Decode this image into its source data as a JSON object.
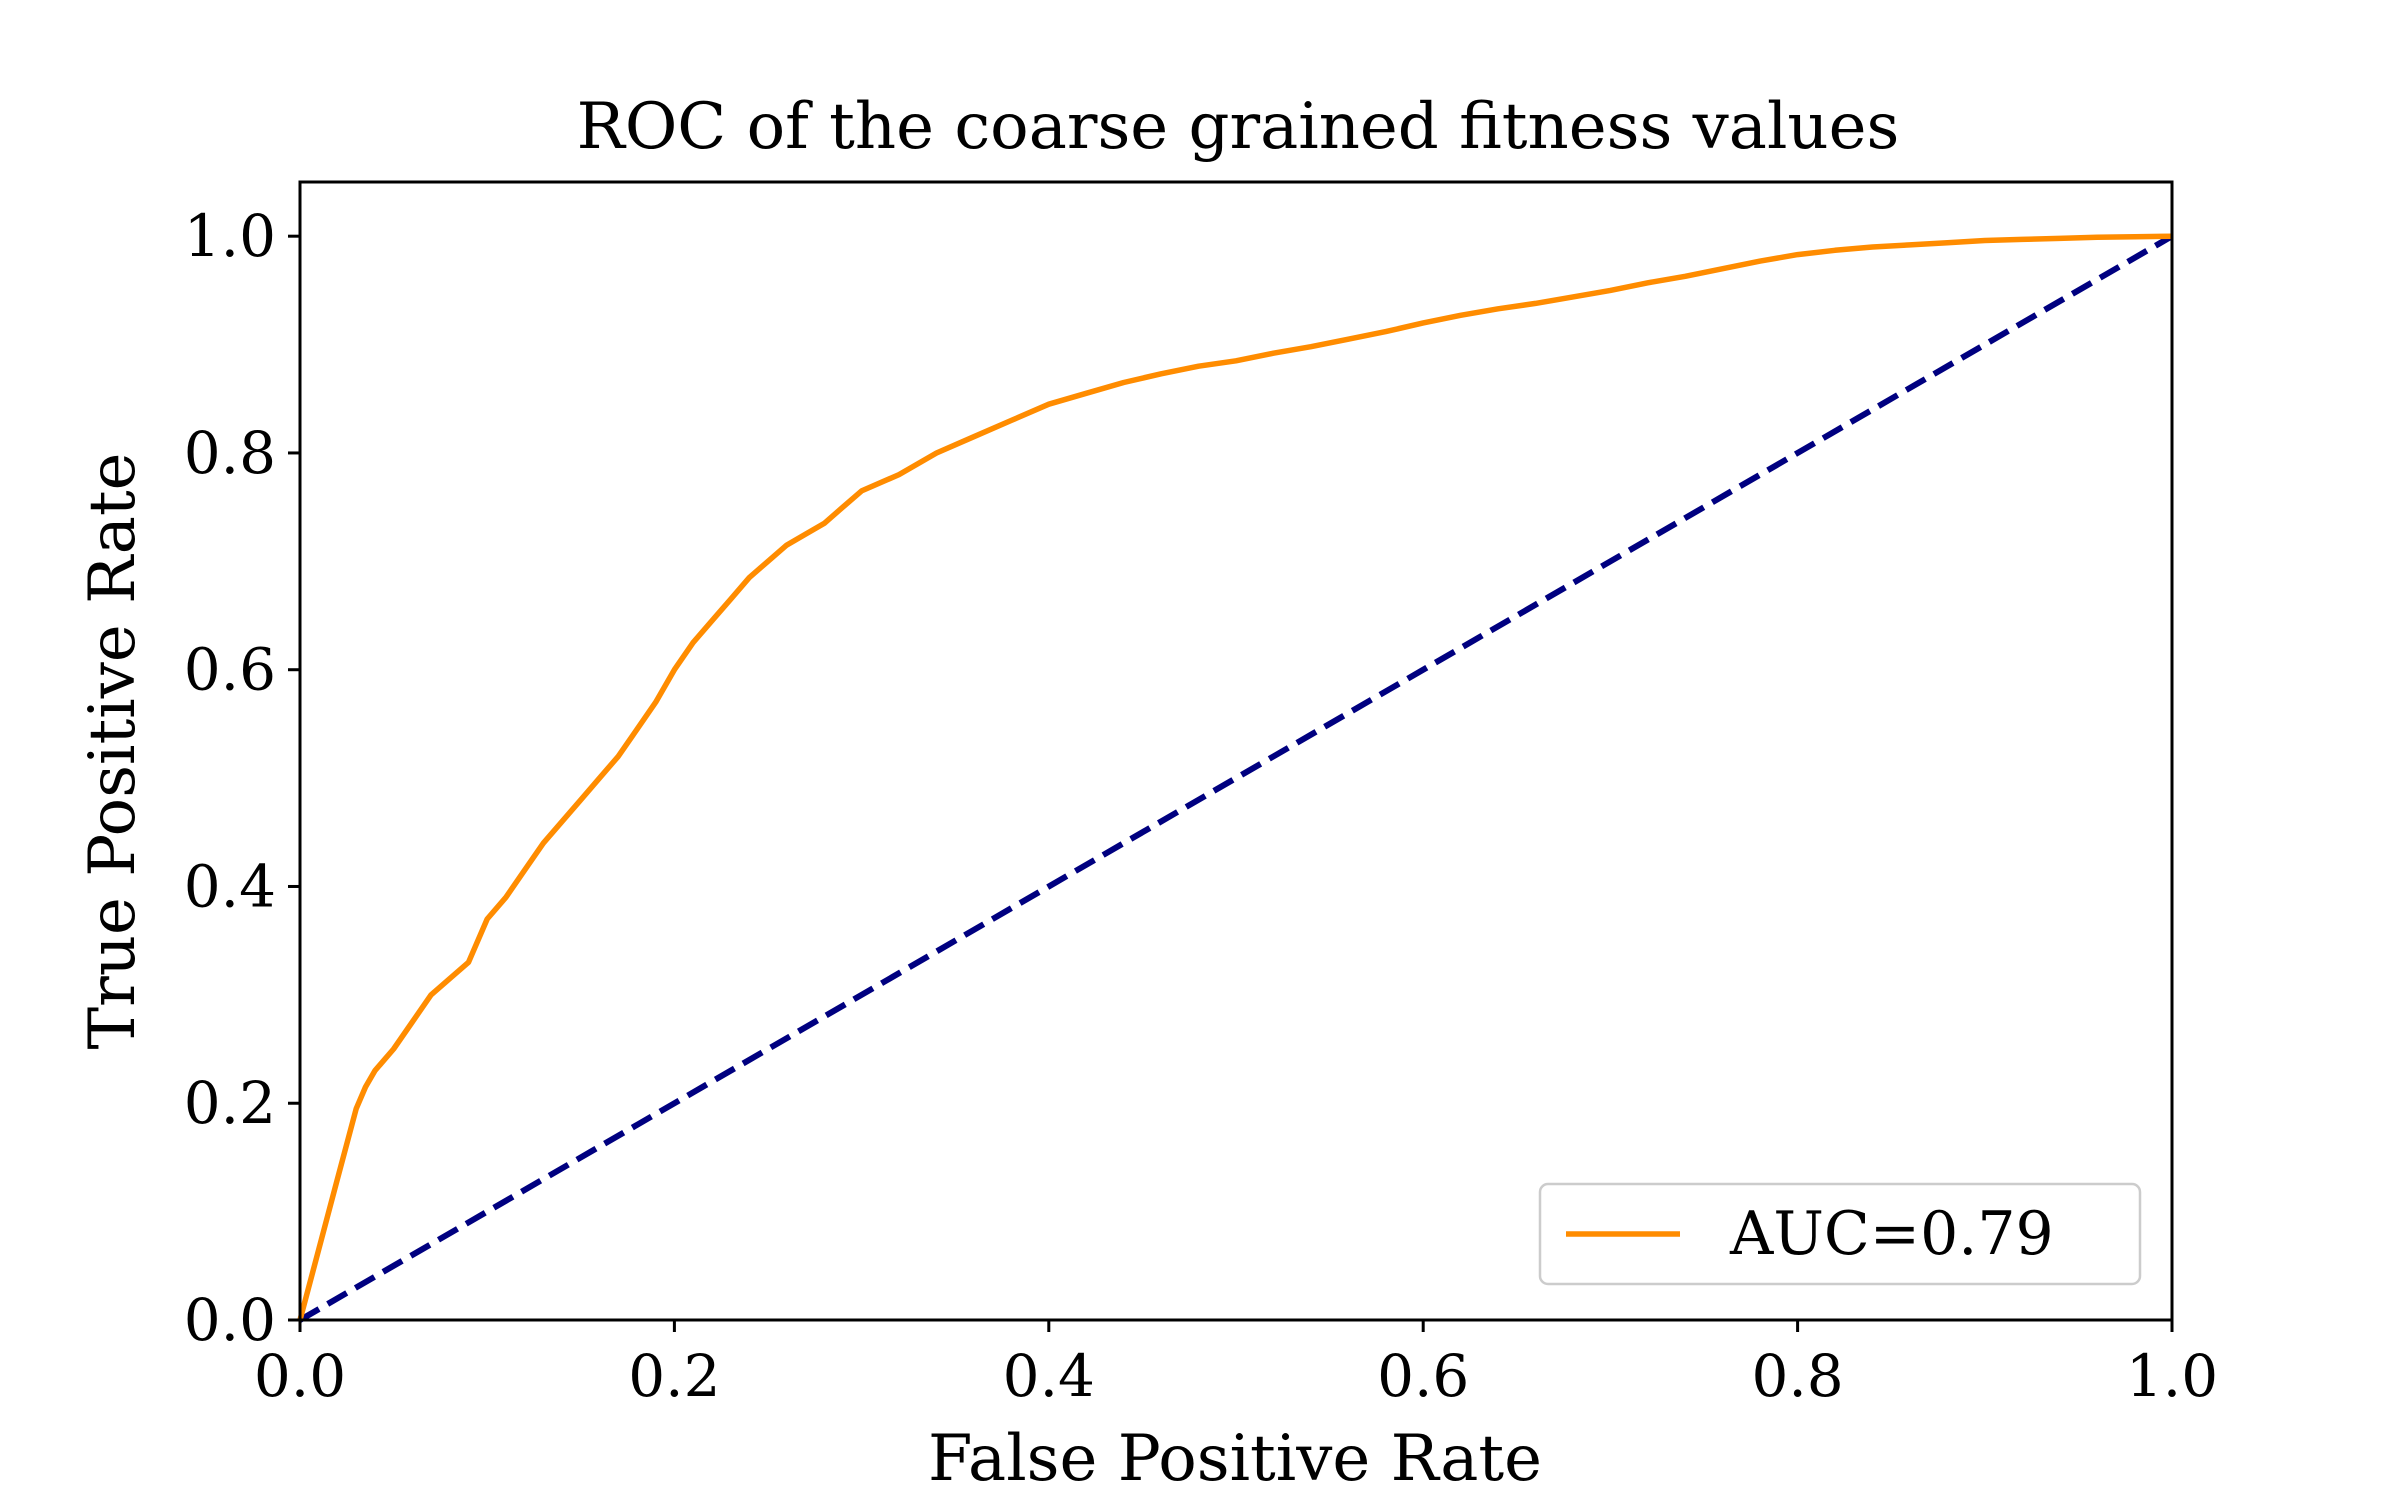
{
  "chart_data": {
    "type": "line",
    "title": "ROC of the coarse grained fitness values",
    "xlabel": "False Positive Rate",
    "ylabel": "True Positive Rate",
    "xlim": [
      0.0,
      1.0
    ],
    "ylim": [
      0.0,
      1.05
    ],
    "x_ticks": [
      0.0,
      0.2,
      0.4,
      0.6,
      0.8,
      1.0
    ],
    "x_tick_labels": [
      "0.0",
      "0.2",
      "0.4",
      "0.6",
      "0.8",
      "1.0"
    ],
    "y_ticks": [
      0.0,
      0.2,
      0.4,
      0.6,
      0.8,
      1.0
    ],
    "y_tick_labels": [
      "0.0",
      "0.2",
      "0.4",
      "0.6",
      "0.8",
      "1.0"
    ],
    "grid": false,
    "legend_position": "bottom-right",
    "series": [
      {
        "name": "AUC=0.79",
        "color": "#ff8c00",
        "style": "solid",
        "x": [
          0.0,
          0.01,
          0.02,
          0.03,
          0.035,
          0.04,
          0.05,
          0.06,
          0.07,
          0.08,
          0.09,
          0.1,
          0.11,
          0.12,
          0.13,
          0.14,
          0.15,
          0.16,
          0.17,
          0.18,
          0.19,
          0.2,
          0.21,
          0.22,
          0.23,
          0.24,
          0.25,
          0.26,
          0.27,
          0.28,
          0.29,
          0.3,
          0.32,
          0.34,
          0.36,
          0.38,
          0.4,
          0.42,
          0.44,
          0.46,
          0.48,
          0.5,
          0.52,
          0.54,
          0.56,
          0.58,
          0.6,
          0.62,
          0.64,
          0.66,
          0.68,
          0.7,
          0.72,
          0.74,
          0.76,
          0.78,
          0.8,
          0.82,
          0.84,
          0.86,
          0.88,
          0.9,
          0.92,
          0.94,
          0.96,
          0.98,
          1.0
        ],
        "y": [
          0.0,
          0.065,
          0.13,
          0.195,
          0.215,
          0.23,
          0.25,
          0.275,
          0.3,
          0.315,
          0.33,
          0.37,
          0.39,
          0.415,
          0.44,
          0.46,
          0.48,
          0.5,
          0.52,
          0.545,
          0.57,
          0.6,
          0.625,
          0.645,
          0.665,
          0.685,
          0.7,
          0.715,
          0.725,
          0.735,
          0.75,
          0.765,
          0.78,
          0.8,
          0.815,
          0.83,
          0.845,
          0.855,
          0.865,
          0.873,
          0.88,
          0.885,
          0.892,
          0.898,
          0.905,
          0.912,
          0.92,
          0.927,
          0.933,
          0.938,
          0.944,
          0.95,
          0.957,
          0.963,
          0.97,
          0.977,
          0.983,
          0.987,
          0.99,
          0.992,
          0.994,
          0.996,
          0.997,
          0.998,
          0.999,
          0.9995,
          1.0
        ]
      },
      {
        "name": "",
        "color": "#000080",
        "style": "dashed",
        "x": [
          0.0,
          1.0
        ],
        "y": [
          0.0,
          1.0
        ]
      }
    ]
  }
}
